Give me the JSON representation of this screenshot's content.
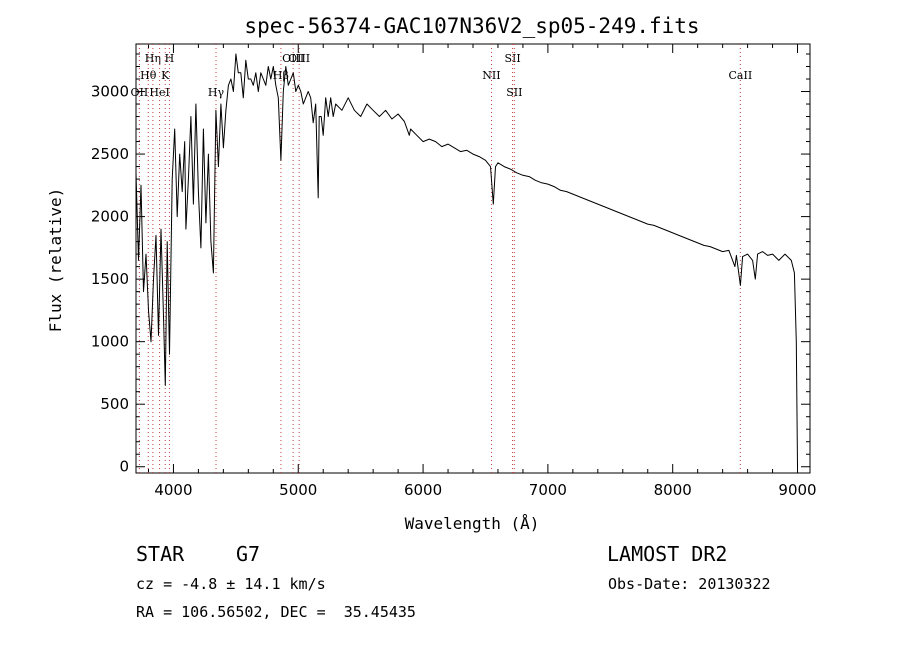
{
  "chart_data": {
    "type": "line",
    "title": "spec-56374-GAC107N36V2_sp05-249.fits",
    "xlabel": "Wavelength (Å)",
    "ylabel": "Flux (relative)",
    "xlim": [
      3700,
      9100
    ],
    "ylim": [
      -50,
      3380
    ],
    "x_ticks": [
      4000,
      5000,
      6000,
      7000,
      8000,
      9000
    ],
    "y_ticks": [
      0,
      500,
      1000,
      1500,
      2000,
      2500,
      3000
    ],
    "grid": false,
    "series": [
      {
        "color": "#000000",
        "x": [
          3700,
          3720,
          3740,
          3760,
          3780,
          3800,
          3820,
          3840,
          3860,
          3880,
          3900,
          3920,
          3935,
          3950,
          3968,
          3990,
          4010,
          4030,
          4050,
          4070,
          4090,
          4100,
          4120,
          4140,
          4160,
          4180,
          4200,
          4220,
          4240,
          4260,
          4280,
          4300,
          4320,
          4340,
          4360,
          4380,
          4400,
          4420,
          4440,
          4460,
          4480,
          4500,
          4520,
          4540,
          4560,
          4580,
          4600,
          4620,
          4640,
          4660,
          4680,
          4700,
          4720,
          4740,
          4760,
          4780,
          4800,
          4820,
          4840,
          4861,
          4880,
          4900,
          4920,
          4940,
          4960,
          4980,
          5000,
          5020,
          5040,
          5060,
          5080,
          5100,
          5120,
          5140,
          5160,
          5168,
          5184,
          5200,
          5220,
          5240,
          5260,
          5280,
          5300,
          5350,
          5400,
          5450,
          5500,
          5550,
          5600,
          5650,
          5700,
          5750,
          5800,
          5850,
          5890,
          5900,
          5950,
          6000,
          6050,
          6100,
          6150,
          6200,
          6250,
          6300,
          6350,
          6400,
          6450,
          6500,
          6540,
          6563,
          6580,
          6600,
          6650,
          6700,
          6750,
          6800,
          6850,
          6900,
          6950,
          7000,
          7050,
          7100,
          7150,
          7200,
          7250,
          7300,
          7350,
          7400,
          7450,
          7500,
          7550,
          7600,
          7650,
          7700,
          7750,
          7800,
          7850,
          7900,
          7950,
          8000,
          8050,
          8100,
          8150,
          8200,
          8250,
          8300,
          8350,
          8400,
          8450,
          8498,
          8510,
          8542,
          8560,
          8600,
          8640,
          8662,
          8680,
          8720,
          8760,
          8800,
          8850,
          8900,
          8950,
          8975,
          8990,
          9000
        ],
        "y": [
          2350,
          1650,
          2250,
          1400,
          1700,
          1250,
          1000,
          1500,
          1850,
          1050,
          1900,
          1200,
          650,
          1800,
          900,
          2300,
          2700,
          2000,
          2500,
          2200,
          2600,
          1900,
          2300,
          2800,
          2100,
          2900,
          2200,
          1750,
          2700,
          1950,
          2500,
          1800,
          1550,
          2850,
          2400,
          2900,
          2550,
          2850,
          3050,
          3100,
          3000,
          3300,
          3150,
          3150,
          2950,
          3250,
          3100,
          3100,
          3050,
          3150,
          3000,
          3150,
          3100,
          3050,
          3200,
          3100,
          3200,
          3050,
          2950,
          2450,
          3000,
          3200,
          3050,
          3100,
          3150,
          3000,
          3050,
          3000,
          2900,
          2950,
          3000,
          2950,
          2750,
          2900,
          2150,
          2800,
          2800,
          2650,
          2950,
          2800,
          2950,
          2800,
          2900,
          2850,
          2950,
          2850,
          2800,
          2900,
          2850,
          2800,
          2850,
          2780,
          2820,
          2760,
          2650,
          2700,
          2650,
          2600,
          2620,
          2600,
          2560,
          2580,
          2550,
          2520,
          2530,
          2500,
          2480,
          2450,
          2400,
          2100,
          2400,
          2430,
          2400,
          2380,
          2350,
          2330,
          2320,
          2290,
          2270,
          2260,
          2240,
          2210,
          2200,
          2180,
          2160,
          2140,
          2120,
          2100,
          2080,
          2060,
          2040,
          2020,
          2000,
          1980,
          1960,
          1940,
          1930,
          1910,
          1890,
          1870,
          1850,
          1830,
          1810,
          1790,
          1770,
          1760,
          1740,
          1720,
          1730,
          1600,
          1690,
          1450,
          1680,
          1700,
          1650,
          1500,
          1700,
          1720,
          1690,
          1700,
          1650,
          1700,
          1650,
          1550,
          1000,
          0
        ]
      }
    ],
    "lines": [
      {
        "label": "OII",
        "x": 3727
      },
      {
        "label": "Hθ",
        "x": 3798
      },
      {
        "label": "Hη",
        "x": 3835
      },
      {
        "label": "HeI",
        "x": 3889
      },
      {
        "label": "K",
        "x": 3934
      },
      {
        "label": "H",
        "x": 3968
      },
      {
        "label": "Hγ",
        "x": 4341
      },
      {
        "label": "OIII",
        "x": 4959
      },
      {
        "label": "Hβ",
        "x": 4861
      },
      {
        "label": "OIII",
        "x": 5007
      },
      {
        "label": "NII",
        "x": 6548
      },
      {
        "label": "SII",
        "x": 6717
      },
      {
        "label": "SII",
        "x": 6731
      },
      {
        "label": "CaII",
        "x": 8542
      }
    ]
  },
  "info": {
    "object_class": "STAR",
    "subclass": "G7",
    "survey": "LAMOST DR2",
    "cz": "cz = -4.8 ± 14.1 km/s",
    "obs_date": "Obs-Date: 20130322",
    "coords": "RA = 106.56502, DEC =  35.45435"
  }
}
